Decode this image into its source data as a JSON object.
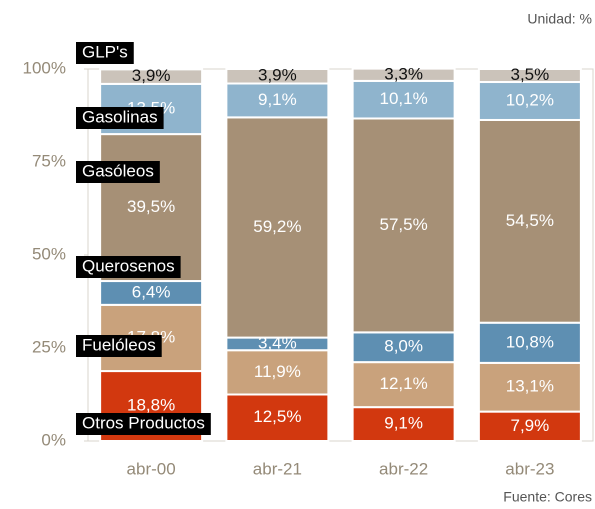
{
  "chart_data": {
    "type": "stacked_bar",
    "unit": "Unidad: %",
    "source": "Fuente: Cores",
    "categories": [
      "abr-00",
      "abr-21",
      "abr-22",
      "abr-23"
    ],
    "series": [
      {
        "name": "Otros Productos",
        "color": "#d2380f",
        "values": [
          18.8,
          12.5,
          9.1,
          7.9
        ],
        "value_labels": [
          "18,8%",
          "12,5%",
          "9,1%",
          "7,9%"
        ]
      },
      {
        "name": "Fuelóleos",
        "color": "#c9a27c",
        "values": [
          17.8,
          11.9,
          12.1,
          13.1
        ],
        "value_labels": [
          "17,8%",
          "11,9%",
          "12,1%",
          "13,1%"
        ]
      },
      {
        "name": "Querosenos",
        "color": "#5e8fb2",
        "values": [
          6.4,
          3.4,
          8.0,
          10.8
        ],
        "value_labels": [
          "6,4%",
          "3,4%",
          "8,0%",
          "10,8%"
        ]
      },
      {
        "name": "Gasóleos",
        "color": "#a69076",
        "values": [
          39.5,
          59.2,
          57.5,
          54.5
        ],
        "value_labels": [
          "39,5%",
          "59,2%",
          "57,5%",
          "54,5%"
        ]
      },
      {
        "name": "Gasolinas",
        "color": "#8fb4cd",
        "values": [
          13.5,
          9.1,
          10.1,
          10.2
        ],
        "value_labels": [
          "13,5%",
          "9,1%",
          "10,1%",
          "10,2%"
        ]
      },
      {
        "name": "GLP's",
        "color": "#cbc3ba",
        "values": [
          3.9,
          3.9,
          3.3,
          3.5
        ],
        "value_labels": [
          "3,9%",
          "3,9%",
          "3,3%",
          "3,5%"
        ]
      }
    ],
    "ylim": [
      0,
      100
    ],
    "yticks": [
      {
        "value": 0,
        "label": "0%"
      },
      {
        "value": 25,
        "label": "25%"
      },
      {
        "value": 50,
        "label": "50%"
      },
      {
        "value": 75,
        "label": "75%"
      },
      {
        "value": 100,
        "label": "100%"
      }
    ],
    "grid": false
  }
}
